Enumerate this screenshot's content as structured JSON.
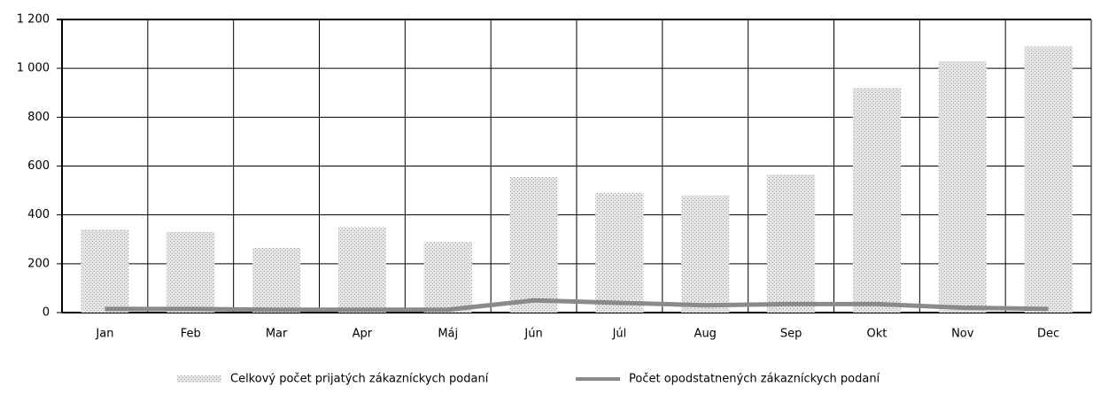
{
  "chart_data": {
    "type": "bar",
    "categories": [
      "Jan",
      "Feb",
      "Mar",
      "Apr",
      "Máj",
      "Jún",
      "Júl",
      "Aug",
      "Sep",
      "Okt",
      "Nov",
      "Dec"
    ],
    "series": [
      {
        "name": "Celkový počet prijatých zákazníckych podaní",
        "type": "bar",
        "color": "#d4d4d4",
        "values": [
          340,
          330,
          265,
          350,
          290,
          555,
          490,
          480,
          565,
          920,
          1030,
          1090
        ]
      },
      {
        "name": "Počet opodstatnených zákazníckych podaní",
        "type": "line",
        "color": "#8a8a8a",
        "values": [
          15,
          15,
          12,
          12,
          12,
          50,
          40,
          30,
          35,
          35,
          20,
          15
        ]
      }
    ],
    "ylim": [
      0,
      1200
    ],
    "yticks": [
      0,
      200,
      400,
      600,
      800,
      {
        "value": 1000,
        "label": "1 000"
      },
      {
        "value": 1200,
        "label": "1 200"
      }
    ],
    "grid": true,
    "legend": "bottom"
  }
}
